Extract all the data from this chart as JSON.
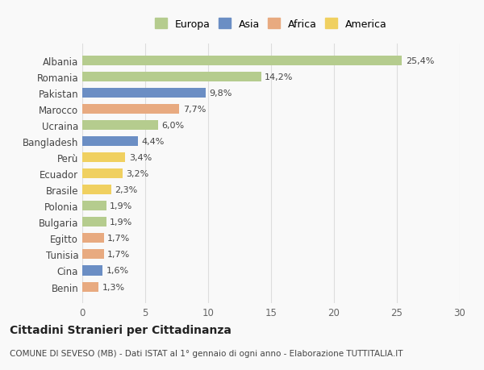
{
  "categories": [
    "Albania",
    "Romania",
    "Pakistan",
    "Marocco",
    "Ucraina",
    "Bangladesh",
    "Perù",
    "Ecuador",
    "Brasile",
    "Polonia",
    "Bulgaria",
    "Egitto",
    "Tunisia",
    "Cina",
    "Benin"
  ],
  "values": [
    25.4,
    14.2,
    9.8,
    7.7,
    6.0,
    4.4,
    3.4,
    3.2,
    2.3,
    1.9,
    1.9,
    1.7,
    1.7,
    1.6,
    1.3
  ],
  "labels": [
    "25,4%",
    "14,2%",
    "9,8%",
    "7,7%",
    "6,0%",
    "4,4%",
    "3,4%",
    "3,2%",
    "2,3%",
    "1,9%",
    "1,9%",
    "1,7%",
    "1,7%",
    "1,6%",
    "1,3%"
  ],
  "continents": [
    "Europa",
    "Europa",
    "Asia",
    "Africa",
    "Europa",
    "Asia",
    "America",
    "America",
    "America",
    "Europa",
    "Europa",
    "Africa",
    "Africa",
    "Asia",
    "Africa"
  ],
  "continent_colors": {
    "Europa": "#b5cc8e",
    "Asia": "#6b8ec4",
    "Africa": "#e8aa80",
    "America": "#f0d060"
  },
  "legend_order": [
    "Europa",
    "Asia",
    "Africa",
    "America"
  ],
  "xlim": [
    0,
    30
  ],
  "xticks": [
    0,
    5,
    10,
    15,
    20,
    25,
    30
  ],
  "title": "Cittadini Stranieri per Cittadinanza",
  "subtitle": "COMUNE DI SEVESO (MB) - Dati ISTAT al 1° gennaio di ogni anno - Elaborazione TUTTITALIA.IT",
  "background_color": "#f9f9f9",
  "bar_height": 0.6,
  "grid_color": "#dddddd"
}
